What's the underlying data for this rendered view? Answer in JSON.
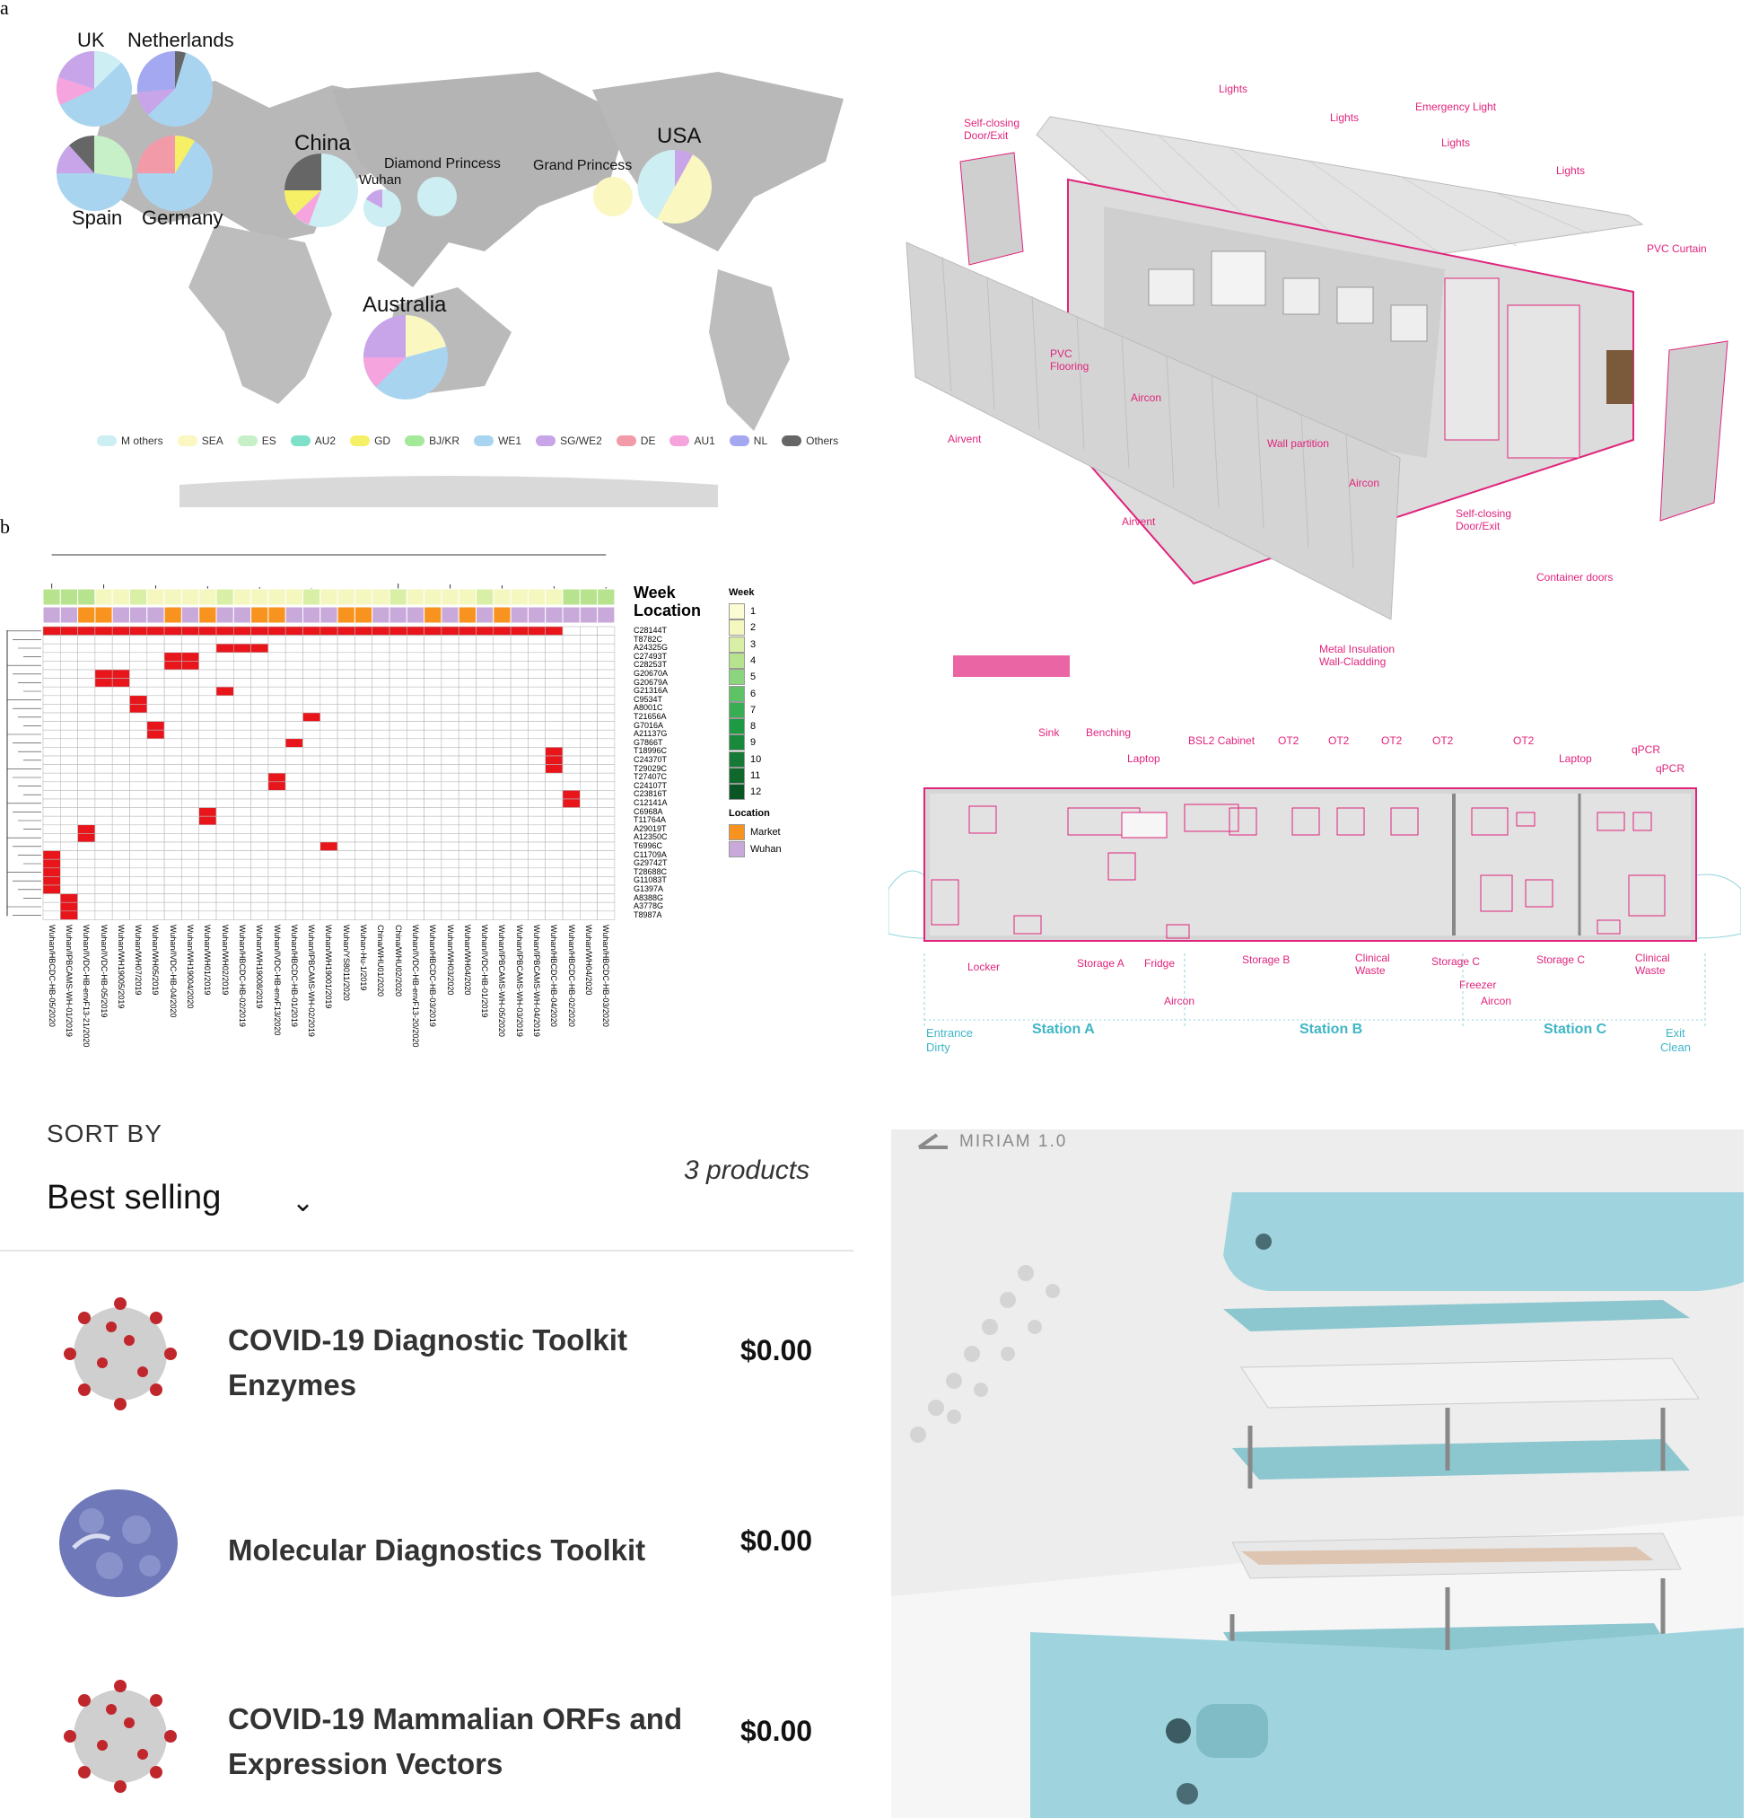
{
  "panel_a": {
    "letter": "a",
    "countries": [
      "UK",
      "Netherlands",
      "China",
      "Wuhan",
      "Diamond Princess",
      "Grand Princess",
      "USA",
      "Spain",
      "Germany",
      "Australia"
    ],
    "legend": [
      {
        "label": "M others",
        "color": "#cdeef2"
      },
      {
        "label": "SEA",
        "color": "#fbf7c0"
      },
      {
        "label": "ES",
        "color": "#c8f0c8"
      },
      {
        "label": "AU2",
        "color": "#7ee0c8"
      },
      {
        "label": "GD",
        "color": "#f5f066"
      },
      {
        "label": "BJ/KR",
        "color": "#a4e89a"
      },
      {
        "label": "WE1",
        "color": "#a9d4ef"
      },
      {
        "label": "SG/WE2",
        "color": "#c8a4e8"
      },
      {
        "label": "DE",
        "color": "#f29aa8"
      },
      {
        "label": "AU1",
        "color": "#f5a4de"
      },
      {
        "label": "NL",
        "color": "#a4a8f0"
      },
      {
        "label": "Others",
        "color": "#666666"
      }
    ]
  },
  "panel_b": {
    "letter": "b",
    "track_titles": {
      "week": "Week",
      "location": "Location"
    },
    "row_labels": [
      "C28144T",
      "T8782C",
      "A24325G",
      "C27493T",
      "C28253T",
      "G20670A",
      "G20679A",
      "G21316A",
      "C9534T",
      "A8001C",
      "T21656A",
      "G7016A",
      "A21137G",
      "G7866T",
      "T18996C",
      "C24370T",
      "T29029C",
      "T27407C",
      "C24107T",
      "C23816T",
      "C12141A",
      "C6968A",
      "T11764A",
      "A29019T",
      "A12350C",
      "T6996C",
      "C11709A",
      "G29742T",
      "T28688C",
      "G11083T",
      "G1397A",
      "A8388G",
      "A3778G",
      "T8987A"
    ],
    "col_labels": [
      "Wuhan/HBCDC-HB-05/2020",
      "Wuhan/IPBCAMS-WH-01/2019",
      "Wuhan/IVDC-HB-envF13-21/2020",
      "Wuhan/IVDC-HB-05/2019",
      "Wuhan/WH19005/2019",
      "Wuhan/WH07/2019",
      "Wuhan/WH05/2019",
      "Wuhan/IVDC-HB-04/2020",
      "Wuhan/WH19004/2020",
      "Wuhan/WH01/2019",
      "Wuhan/WH02/2019",
      "Wuhan/HBCDC-HB-02/2019",
      "Wuhan/WH19008/2019",
      "Wuhan/IVDC-HB-envF13/2020",
      "Wuhan/HBCDC-HB-01/2019",
      "Wuhan/IPBCAMS-WH-02/2019",
      "Wuhan/WH19001/2019",
      "Wuhan/YS8011/2020",
      "Wuhan-Hu-1/2019",
      "China/WHU01/2020",
      "China/WHU02/2020",
      "Wuhan/IVDC-HB-envF13-20/2020",
      "Wuhan/HBCDC-HB-03/2019",
      "Wuhan/WH03/2020",
      "Wuhan/WH04/2020",
      "Wuhan/IVDC-HB-01/2019",
      "Wuhan/IPBCAMS-WH-05/2020",
      "Wuhan/IPBCAMS-WH-03/2019",
      "Wuhan/IPBCAMS-WH-04/2019",
      "Wuhan/HBCDC-HB-04/2020",
      "Wuhan/HBCDC-HB-02/2020",
      "Wuhan/WH04/2020",
      "Wuhan/HBCDC-HB-03/2020"
    ],
    "week_legend": {
      "title": "Week",
      "items": [
        {
          "label": "1",
          "color": "#fbfbd4"
        },
        {
          "label": "2",
          "color": "#f4f7be"
        },
        {
          "label": "3",
          "color": "#d9efa6"
        },
        {
          "label": "4",
          "color": "#b8e38e"
        },
        {
          "label": "5",
          "color": "#8dd47e"
        },
        {
          "label": "6",
          "color": "#5ec266"
        },
        {
          "label": "7",
          "color": "#38ad52"
        },
        {
          "label": "8",
          "color": "#1f9a44"
        },
        {
          "label": "9",
          "color": "#198a3c"
        },
        {
          "label": "10",
          "color": "#157a35"
        },
        {
          "label": "11",
          "color": "#10682d"
        },
        {
          "label": "12",
          "color": "#0a5524"
        }
      ]
    },
    "location_legend": {
      "title": "Location",
      "items": [
        {
          "label": "Market",
          "color": "#f7931e"
        },
        {
          "label": "Wuhan",
          "color": "#c9a9d9"
        }
      ]
    },
    "colors": {
      "mutation": "#e8151b",
      "empty": "#ffffff"
    }
  },
  "container": {
    "annotations": [
      "Lights",
      "Lights",
      "Emergency Light",
      "Lights",
      "Lights",
      "Self-closing Door/Exit",
      "PVC Curtain",
      "PVC Flooring",
      "Aircon",
      "Airvent",
      "Wall partition",
      "Aircon",
      "Airvent",
      "Self-closing Door/Exit",
      "Container doors",
      "Metal Insulation Wall-Cladding"
    ],
    "plan_labels_top": [
      "Sink",
      "Benching",
      "Laptop",
      "BSL2 Cabinet",
      "OT2",
      "OT2",
      "OT2",
      "OT2",
      "OT2",
      "Laptop",
      "qPCR",
      "qPCR"
    ],
    "plan_labels_bottom": [
      "Locker",
      "Storage A",
      "Fridge",
      "Storage B",
      "Clinical Waste",
      "Storage C",
      "Storage C",
      "Clinical Waste",
      "Freezer",
      "Aircon",
      "Aircon"
    ],
    "stations": [
      "Station A",
      "Station B",
      "Station C"
    ],
    "flow": {
      "entrance": "Entrance",
      "dirty": "Dirty",
      "exit": "Exit",
      "clean": "Clean"
    },
    "accent": "#e0247c",
    "flow_color": "#3fb6c6"
  },
  "shop": {
    "sort_label": "SORT BY",
    "sort_value": "Best selling",
    "count_text": "3 products",
    "products": [
      {
        "title": "COVID-19 Diagnostic Toolkit Enzymes",
        "price": "$0.00",
        "image": "virus-image"
      },
      {
        "title": "Molecular Diagnostics Toolkit",
        "price": "$0.00",
        "image": "protein-image"
      },
      {
        "title": "COVID-19 Mammalian ORFs and Expression Vectors",
        "price": "$0.00",
        "image": "virus-image"
      }
    ]
  },
  "miriam": {
    "title": "MIRIAM 1.0",
    "device_color": "#9fd4df"
  }
}
